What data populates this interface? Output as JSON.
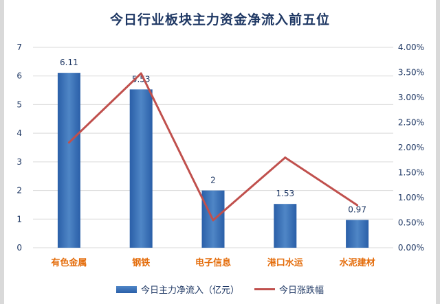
{
  "chart_data": {
    "type": "bar",
    "title": "今日行业板块主力资金净流入前五位",
    "categories": [
      "有色金属",
      "钢铁",
      "电子信息",
      "港口水运",
      "水泥建材"
    ],
    "series": [
      {
        "name": "今日主力净流入（亿元）",
        "type": "bar",
        "axis": "left",
        "values": [
          6.11,
          5.53,
          2,
          1.53,
          0.97
        ],
        "labels": [
          "6.11",
          "5.53",
          "2",
          "1.53",
          "0.97"
        ],
        "color": "#3a73b8"
      },
      {
        "name": "今日涨跌幅",
        "type": "line",
        "axis": "right",
        "values": [
          2.1,
          3.48,
          0.55,
          1.8,
          0.85
        ],
        "unit": "%",
        "color": "#c0504d"
      }
    ],
    "y_left": {
      "min": 0,
      "max": 7,
      "ticks": [
        "0",
        "1",
        "2",
        "3",
        "4",
        "5",
        "6",
        "7"
      ]
    },
    "y_right": {
      "min": 0,
      "max": 4,
      "ticks": [
        "0.00%",
        "0.50%",
        "1.00%",
        "1.50%",
        "2.00%",
        "2.50%",
        "3.00%",
        "3.50%",
        "4.00%"
      ]
    },
    "grid": true,
    "legend": "bottom",
    "category_color": "#e46c0a"
  }
}
